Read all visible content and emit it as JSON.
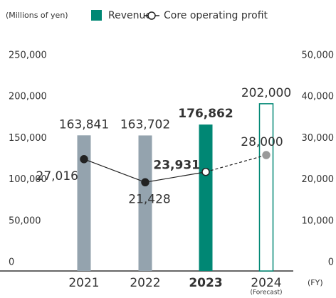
{
  "chart_data": {
    "type": "bar-line",
    "unit_label": "(Millions of yen)",
    "x_axis_label": "(FY)",
    "annotation": "(Forecast)",
    "categories": [
      "2021",
      "2022",
      "2023",
      "2024"
    ],
    "series": [
      {
        "name": "Revenue",
        "type": "bar",
        "color": "#008774",
        "colors": [
          "#94a3ae",
          "#94a3ae",
          "#008774",
          "#008774"
        ],
        "styles": [
          "solid",
          "solid",
          "solid",
          "forecast"
        ],
        "values": [
          163841,
          163702,
          176862,
          202000
        ],
        "value_labels": [
          "163,841",
          "163,702",
          "176,862",
          "202,000"
        ]
      },
      {
        "name": "Core operating profit",
        "type": "line",
        "axis": "y2",
        "color": "#222222",
        "marker_colors": [
          "#222222",
          "#222222",
          "#ffffff",
          "#999999"
        ],
        "styles": [
          "solid",
          "solid",
          "solid",
          "forecast"
        ],
        "values": [
          27016,
          21428,
          23931,
          28000
        ],
        "value_labels": [
          "27,016",
          "21,428",
          "23,931",
          "28,000"
        ]
      }
    ],
    "ylim": [
      0,
      250000
    ],
    "yticks": [
      0,
      {
        "value": 50000,
        "label": "50,000"
      },
      {
        "value": 100000,
        "label": "100,000"
      },
      {
        "value": 150000,
        "label": "150,000"
      },
      {
        "value": 200000,
        "label": "200,000"
      },
      {
        "value": 250000,
        "label": "250,000"
      }
    ],
    "y2lim": [
      0,
      50000
    ],
    "y2ticks": [
      0,
      {
        "value": 10000,
        "label": "10,000"
      },
      {
        "value": 20000,
        "label": "20,000"
      },
      {
        "value": 30000,
        "label": "30,000"
      },
      {
        "value": 40000,
        "label": "40,000"
      },
      {
        "value": 50000,
        "label": "50,000"
      }
    ],
    "grid": false
  }
}
